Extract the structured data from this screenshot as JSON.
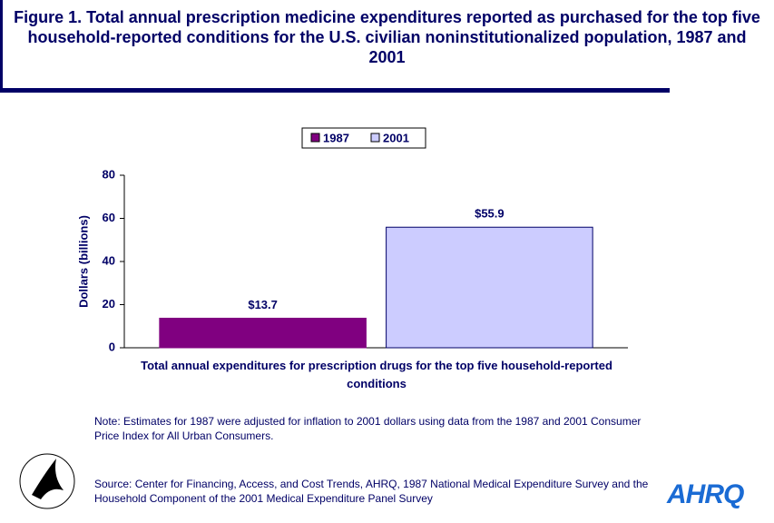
{
  "chart_data": {
    "type": "bar",
    "title": "Figure 1. Total annual prescription medicine expenditures reported as purchased for the top five household-reported conditions for the U.S. civilian noninstitutionalized population, 1987 and 2001",
    "categories": [
      "Total annual expenditures for prescription drugs for the top five household-reported conditions"
    ],
    "series": [
      {
        "name": "1987",
        "color": "#800080",
        "values": [
          13.7
        ],
        "value_labels": [
          "$13.7"
        ]
      },
      {
        "name": "2001",
        "color": "#ccccff",
        "values": [
          55.9
        ],
        "value_labels": [
          "$55.9"
        ]
      }
    ],
    "ylabel": "Dollars (billions)",
    "ylim": [
      0,
      80
    ],
    "yticks": [
      0,
      20,
      40,
      60,
      80
    ],
    "grid": false,
    "legend": "top",
    "note": "Note: Estimates for 1987 were adjusted for inflation to 2001 dollars using data from the 1987 and 2001 Consumer Price Index for All Urban Consumers.",
    "source": "Source: Center for Financing, Access, and Cost Trends, AHRQ, 1987 National Medical Expenditure Survey and the Household Component of the 2001 Medical Expenditure Panel Survey",
    "logo_text": "AHRQ"
  }
}
